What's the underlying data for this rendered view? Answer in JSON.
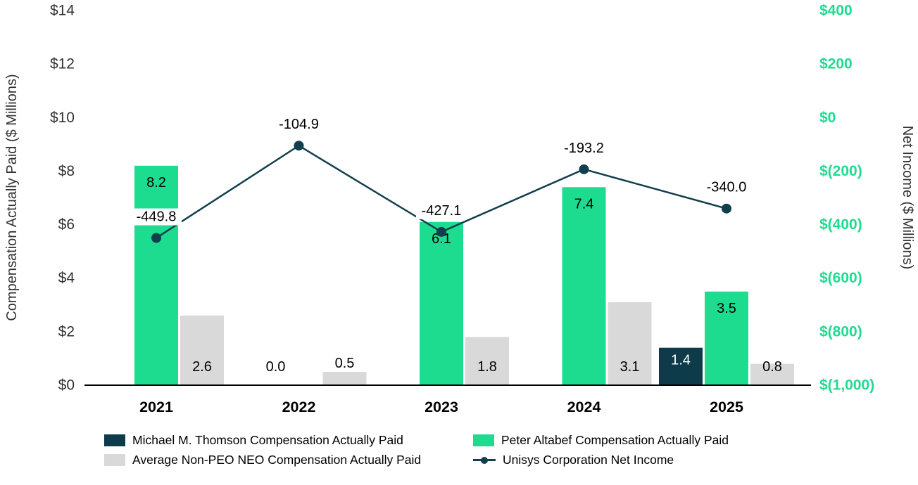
{
  "chart_data": {
    "type": "bar",
    "subtype": "grouped-bar-with-line-dual-axis",
    "categories": [
      "2021",
      "2022",
      "2023",
      "2024",
      "2025"
    ],
    "bar_series": [
      {
        "name": "Michael M. Thomson Compensation Actually Paid",
        "color": "#0d3b49",
        "values": [
          null,
          null,
          null,
          null,
          1.4
        ]
      },
      {
        "name": "Peter Altabef Compensation Actually Paid",
        "color": "#1ddc90",
        "values": [
          8.2,
          0.0,
          6.1,
          7.4,
          3.5
        ]
      },
      {
        "name": "Average Non-PEO NEO Compensation Actually Paid",
        "color": "#d9d9d9",
        "values": [
          2.6,
          0.5,
          1.8,
          3.1,
          0.8
        ]
      }
    ],
    "line_series": {
      "name": "Unisys Corporation Net Income",
      "color": "#123f4c",
      "values": [
        -449.8,
        -104.9,
        -427.1,
        -193.2,
        -340.0
      ]
    },
    "left_axis": {
      "title": "Compensation Actually Paid ($ Millions)",
      "min": 0,
      "max": 14,
      "ticks": [
        "$0",
        "$2",
        "$4",
        "$6",
        "$8",
        "$10",
        "$12",
        "$14"
      ]
    },
    "right_axis": {
      "title": "Net Income ($ Millions)",
      "min": -1000,
      "max": 400,
      "ticks": [
        "$400",
        "$200",
        "$0",
        "$(200)",
        "$(400)",
        "$(600)",
        "$(800)",
        "$(1,000)"
      ],
      "color": "#1ddc90"
    },
    "legend_position": "bottom",
    "grid": false
  },
  "colors": {
    "axis_text": "#333333",
    "label_text": "#000000",
    "thomson_label_text": "#ffffff",
    "axis_line": "#000000",
    "label_background": "#ffffff"
  }
}
